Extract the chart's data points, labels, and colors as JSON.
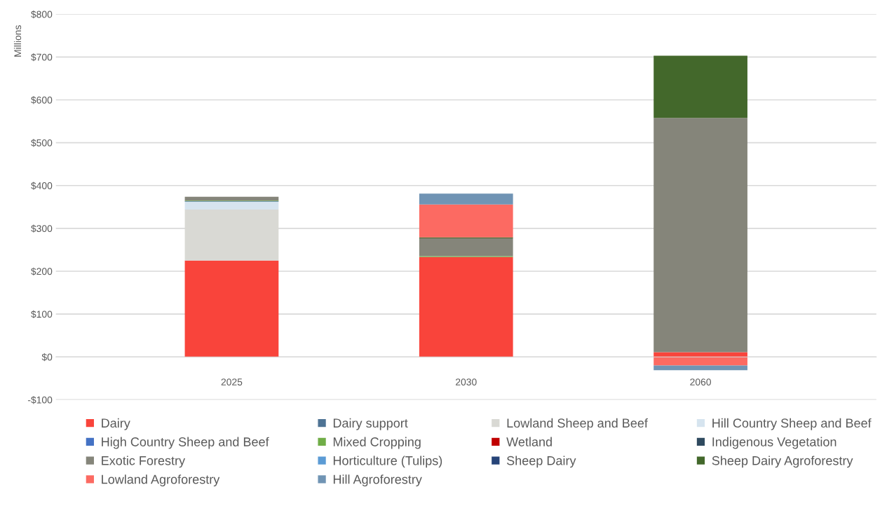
{
  "chart_data": {
    "type": "bar",
    "stacked": true,
    "ylabel": "Millions",
    "categories": [
      "2025",
      "2030",
      "2060"
    ],
    "ylim": [
      -100,
      800
    ],
    "yticks": [
      {
        "value": -100,
        "label": "-$100"
      },
      {
        "value": 0,
        "label": "$0"
      },
      {
        "value": 100,
        "label": "$100"
      },
      {
        "value": 200,
        "label": "$200"
      },
      {
        "value": 300,
        "label": "$300"
      },
      {
        "value": 400,
        "label": "$400"
      },
      {
        "value": 500,
        "label": "$500"
      },
      {
        "value": 600,
        "label": "$600"
      },
      {
        "value": 700,
        "label": "$700"
      },
      {
        "value": 800,
        "label": "$800"
      }
    ],
    "grid": "y",
    "legend": "bottom",
    "series": [
      {
        "name": "Dairy",
        "color": "#f9443b",
        "values": [
          225,
          233,
          11
        ]
      },
      {
        "name": "Dairy support",
        "color": "#4e7394",
        "values": [
          null,
          0,
          0
        ]
      },
      {
        "name": "Lowland Sheep and Beef",
        "color": "#d9d9d4",
        "values": [
          119,
          0,
          0
        ]
      },
      {
        "name": "Hill Country Sheep and Beef",
        "color": "#d6e4ef",
        "values": [
          18,
          0,
          0
        ]
      },
      {
        "name": "High Country Sheep and Beef",
        "color": "#4472c4",
        "values": [
          1,
          0,
          0
        ]
      },
      {
        "name": "Mixed Cropping",
        "color": "#70ad47",
        "values": [
          2,
          2,
          0
        ]
      },
      {
        "name": "Wetland",
        "color": "#c00000",
        "values": [
          0,
          0,
          0
        ]
      },
      {
        "name": "Indigenous Vegetation",
        "color": "#2f4a5f",
        "values": [
          0,
          0,
          0
        ]
      },
      {
        "name": "Exotic Forestry",
        "color": "#85857a",
        "values": [
          9,
          42,
          547
        ]
      },
      {
        "name": "Horticulture (Tulips)",
        "color": "#5b9bd5",
        "values": [
          0,
          0,
          0
        ]
      },
      {
        "name": "Sheep Dairy",
        "color": "#264478",
        "values": [
          0,
          0,
          0
        ]
      },
      {
        "name": "Sheep Dairy Agroforestry",
        "color": "#43682b",
        "values": [
          0,
          2,
          145
        ]
      },
      {
        "name": "Lowland Agroforestry",
        "color": "#fc6a62",
        "values": [
          0,
          77,
          -20
        ]
      },
      {
        "name": "Hill Agroforestry",
        "color": "#7094b4",
        "values": [
          0,
          25,
          -11
        ]
      }
    ]
  }
}
